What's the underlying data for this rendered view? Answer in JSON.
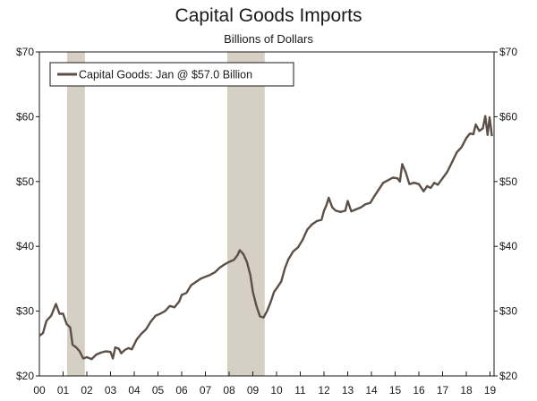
{
  "chart_data": {
    "type": "line",
    "title": "Capital Goods Imports",
    "subtitle": "Billions of Dollars",
    "xlabel": "",
    "ylabel": "",
    "x_tick_labels": [
      "00",
      "01",
      "02",
      "03",
      "04",
      "05",
      "06",
      "07",
      "08",
      "09",
      "10",
      "11",
      "12",
      "13",
      "14",
      "15",
      "16",
      "17",
      "18",
      "19"
    ],
    "y_tick_labels": [
      "$20",
      "$30",
      "$40",
      "$50",
      "$60",
      "$70"
    ],
    "y_ticks": [
      20,
      30,
      40,
      50,
      60,
      70
    ],
    "xlim": [
      2000.0,
      2019.17
    ],
    "ylim": [
      20,
      70
    ],
    "grid": false,
    "legend_position": "top-left",
    "recession_shading": [
      [
        2001.17,
        2001.92
      ],
      [
        2007.92,
        2009.5
      ]
    ],
    "series": [
      {
        "name": "Capital Goods: Jan @ $57.0 Billion",
        "color": "#5b4f47",
        "points": [
          [
            2000.0,
            26.2
          ],
          [
            2000.15,
            26.6
          ],
          [
            2000.3,
            28.5
          ],
          [
            2000.5,
            29.3
          ],
          [
            2000.7,
            31.1
          ],
          [
            2000.85,
            29.6
          ],
          [
            2001.0,
            29.6
          ],
          [
            2001.15,
            28.0
          ],
          [
            2001.3,
            27.5
          ],
          [
            2001.4,
            24.8
          ],
          [
            2001.55,
            24.4
          ],
          [
            2001.7,
            23.8
          ],
          [
            2001.85,
            22.7
          ],
          [
            2002.0,
            22.9
          ],
          [
            2002.2,
            22.6
          ],
          [
            2002.4,
            23.3
          ],
          [
            2002.6,
            23.6
          ],
          [
            2002.8,
            23.8
          ],
          [
            2003.0,
            23.7
          ],
          [
            2003.1,
            22.7
          ],
          [
            2003.2,
            24.4
          ],
          [
            2003.35,
            24.2
          ],
          [
            2003.45,
            23.5
          ],
          [
            2003.6,
            24.0
          ],
          [
            2003.75,
            24.3
          ],
          [
            2003.9,
            24.1
          ],
          [
            2004.1,
            25.6
          ],
          [
            2004.3,
            26.5
          ],
          [
            2004.5,
            27.2
          ],
          [
            2004.7,
            28.4
          ],
          [
            2004.9,
            29.3
          ],
          [
            2005.1,
            29.6
          ],
          [
            2005.3,
            30.0
          ],
          [
            2005.5,
            30.8
          ],
          [
            2005.7,
            30.6
          ],
          [
            2005.9,
            31.5
          ],
          [
            2006.0,
            32.5
          ],
          [
            2006.2,
            32.8
          ],
          [
            2006.4,
            34.0
          ],
          [
            2006.6,
            34.5
          ],
          [
            2006.8,
            35.0
          ],
          [
            2007.0,
            35.3
          ],
          [
            2007.2,
            35.6
          ],
          [
            2007.4,
            36.0
          ],
          [
            2007.6,
            36.7
          ],
          [
            2007.8,
            37.2
          ],
          [
            2008.0,
            37.6
          ],
          [
            2008.2,
            37.9
          ],
          [
            2008.35,
            38.6
          ],
          [
            2008.45,
            39.4
          ],
          [
            2008.6,
            38.8
          ],
          [
            2008.75,
            37.6
          ],
          [
            2008.9,
            35.5
          ],
          [
            2009.0,
            33.0
          ],
          [
            2009.15,
            30.8
          ],
          [
            2009.3,
            29.2
          ],
          [
            2009.45,
            29.0
          ],
          [
            2009.6,
            30.0
          ],
          [
            2009.75,
            31.4
          ],
          [
            2009.9,
            33.0
          ],
          [
            2010.0,
            33.5
          ],
          [
            2010.2,
            34.6
          ],
          [
            2010.35,
            36.6
          ],
          [
            2010.5,
            38.0
          ],
          [
            2010.7,
            39.2
          ],
          [
            2010.9,
            39.8
          ],
          [
            2011.1,
            41.0
          ],
          [
            2011.3,
            42.6
          ],
          [
            2011.5,
            43.4
          ],
          [
            2011.7,
            43.9
          ],
          [
            2011.9,
            44.1
          ],
          [
            2012.0,
            45.5
          ],
          [
            2012.1,
            46.3
          ],
          [
            2012.2,
            47.5
          ],
          [
            2012.35,
            46.0
          ],
          [
            2012.5,
            45.5
          ],
          [
            2012.7,
            45.3
          ],
          [
            2012.9,
            45.5
          ],
          [
            2013.0,
            47.0
          ],
          [
            2013.15,
            45.4
          ],
          [
            2013.35,
            45.7
          ],
          [
            2013.55,
            46.0
          ],
          [
            2013.75,
            46.5
          ],
          [
            2013.95,
            46.7
          ],
          [
            2014.1,
            47.6
          ],
          [
            2014.3,
            48.7
          ],
          [
            2014.5,
            49.8
          ],
          [
            2014.7,
            50.2
          ],
          [
            2014.9,
            50.6
          ],
          [
            2015.1,
            50.5
          ],
          [
            2015.2,
            50.0
          ],
          [
            2015.3,
            52.7
          ],
          [
            2015.45,
            51.4
          ],
          [
            2015.6,
            49.6
          ],
          [
            2015.8,
            49.8
          ],
          [
            2016.0,
            49.6
          ],
          [
            2016.2,
            48.5
          ],
          [
            2016.35,
            49.3
          ],
          [
            2016.5,
            49.0
          ],
          [
            2016.65,
            49.8
          ],
          [
            2016.8,
            49.5
          ],
          [
            2017.0,
            50.5
          ],
          [
            2017.2,
            51.5
          ],
          [
            2017.4,
            53.0
          ],
          [
            2017.6,
            54.5
          ],
          [
            2017.8,
            55.3
          ],
          [
            2018.0,
            56.7
          ],
          [
            2018.15,
            57.4
          ],
          [
            2018.3,
            57.3
          ],
          [
            2018.4,
            58.8
          ],
          [
            2018.55,
            57.8
          ],
          [
            2018.7,
            58.2
          ],
          [
            2018.8,
            60.1
          ],
          [
            2018.9,
            57.2
          ],
          [
            2018.98,
            59.9
          ],
          [
            2019.05,
            58.0
          ],
          [
            2019.08,
            57.0
          ]
        ]
      }
    ]
  }
}
